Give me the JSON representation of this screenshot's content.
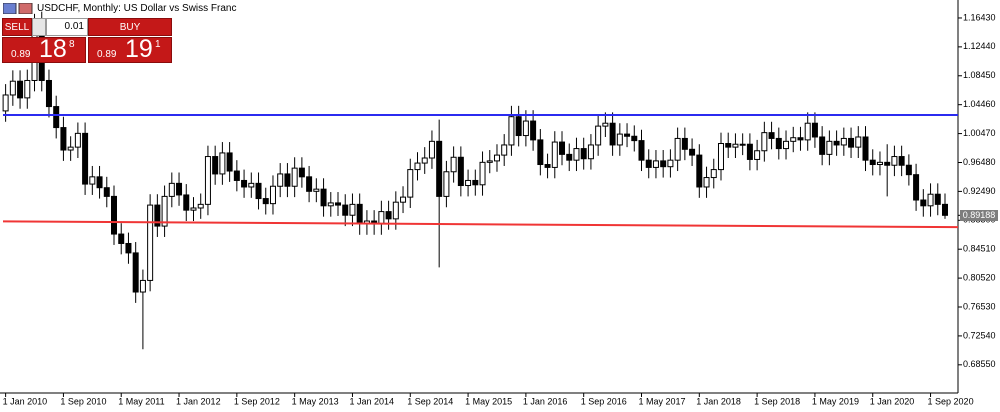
{
  "chart_data": {
    "type": "candlestick",
    "title": "USDCHF, Monthly:  US Dollar vs Swiss Franc",
    "categories": [
      "1 Jan 2010",
      null,
      null,
      null,
      null,
      null,
      null,
      null,
      "1 Sep 2010",
      null,
      null,
      null,
      null,
      null,
      null,
      null,
      "1 May 2011",
      null,
      null,
      null,
      null,
      null,
      null,
      null,
      "1 Jan 2012",
      null,
      null,
      null,
      null,
      null,
      null,
      null,
      "1 Sep 2012",
      null,
      null,
      null,
      null,
      null,
      null,
      null,
      "1 May 2013",
      null,
      null,
      null,
      null,
      null,
      null,
      null,
      "1 Jan 2014",
      null,
      null,
      null,
      null,
      null,
      null,
      null,
      "1 Sep 2014",
      null,
      null,
      null,
      null,
      null,
      null,
      null,
      "1 May 2015",
      null,
      null,
      null,
      null,
      null,
      null,
      null,
      "1 Jan 2016",
      null,
      null,
      null,
      null,
      null,
      null,
      null,
      "1 Sep 2016",
      null,
      null,
      null,
      null,
      null,
      null,
      null,
      "1 May 2017",
      null,
      null,
      null,
      null,
      null,
      null,
      null,
      "1 Jan 2018",
      null,
      null,
      null,
      null,
      null,
      null,
      null,
      "1 Sep 2018",
      null,
      null,
      null,
      null,
      null,
      null,
      null,
      "1 May 2019",
      null,
      null,
      null,
      null,
      null,
      null,
      null,
      "1 Jan 2020",
      null,
      null,
      null,
      null,
      null,
      null,
      null,
      "1 Sep 2020",
      null,
      null
    ],
    "open": [
      1.036,
      1.058,
      1.077,
      1.054,
      1.078,
      1.155,
      1.078,
      1.042,
      1.013,
      0.982,
      0.986,
      1.005,
      0.935,
      0.945,
      0.93,
      0.918,
      0.866,
      0.853,
      0.84,
      0.786,
      0.802,
      0.906,
      0.877,
      0.918,
      0.936,
      0.92,
      0.899,
      0.902,
      0.907,
      0.973,
      0.949,
      0.978,
      0.953,
      0.94,
      0.931,
      0.936,
      0.915,
      0.908,
      0.932,
      0.949,
      0.932,
      0.957,
      0.945,
      0.925,
      0.928,
      0.905,
      0.909,
      0.906,
      0.892,
      0.907,
      0.88,
      0.884,
      0.88,
      0.897,
      0.887,
      0.91,
      0.917,
      0.955,
      0.964,
      0.971,
      0.994,
      0.918,
      0.952,
      0.972,
      0.933,
      0.94,
      0.934,
      0.965,
      0.967,
      0.975,
      0.989,
      1.028,
      1.002,
      1.022,
      0.996,
      0.962,
      0.958,
      0.993,
      0.976,
      0.968,
      0.984,
      0.97,
      0.989,
      1.015,
      1.019,
      0.989,
      1.004,
      1.001,
      0.995,
      0.968,
      0.958,
      0.967,
      0.959,
      0.968,
      0.998,
      0.983,
      0.975,
      0.931,
      0.944,
      0.955,
      0.991,
      0.986,
      0.99,
      0.99,
      0.969,
      0.981,
      1.006,
      0.998,
      0.984,
      0.994,
      0.999,
      0.996,
      1.019,
      1.0,
      0.976,
      0.994,
      0.989,
      0.998,
      0.986,
      1.0,
      0.968,
      0.962,
      0.965,
      0.961,
      0.973,
      0.961,
      0.948,
      0.913,
      0.905,
      0.921,
      0.907
    ],
    "high": [
      1.073,
      1.092,
      1.092,
      1.093,
      1.17,
      1.173,
      1.093,
      1.057,
      1.028,
      1.001,
      1.02,
      1.02,
      0.96,
      0.96,
      0.945,
      0.933,
      0.881,
      0.868,
      0.855,
      0.817,
      0.921,
      0.921,
      0.933,
      0.951,
      0.951,
      0.935,
      0.917,
      0.922,
      0.988,
      0.988,
      0.993,
      0.993,
      0.968,
      0.955,
      0.951,
      0.951,
      0.93,
      0.947,
      0.964,
      0.964,
      0.972,
      0.972,
      0.96,
      0.943,
      0.943,
      0.924,
      0.924,
      0.921,
      0.922,
      0.922,
      0.899,
      0.899,
      0.912,
      0.912,
      0.925,
      0.932,
      0.97,
      0.979,
      0.986,
      1.009,
      1.024,
      0.967,
      0.987,
      0.987,
      0.955,
      0.955,
      0.98,
      0.982,
      0.99,
      1.004,
      1.043,
      1.043,
      1.037,
      1.037,
      1.011,
      0.977,
      1.008,
      1.008,
      0.991,
      0.999,
      0.999,
      1.004,
      1.03,
      1.034,
      1.034,
      1.019,
      1.019,
      1.016,
      1.01,
      0.983,
      0.982,
      0.982,
      0.983,
      1.013,
      1.013,
      0.998,
      0.99,
      0.959,
      0.97,
      1.006,
      1.006,
      1.005,
      1.005,
      1.005,
      0.996,
      1.021,
      1.021,
      1.013,
      1.009,
      1.014,
      1.014,
      1.034,
      1.034,
      1.015,
      1.009,
      1.009,
      1.013,
      1.013,
      1.015,
      1.015,
      0.983,
      0.98,
      0.99,
      0.988,
      0.988,
      0.976,
      0.963,
      0.928,
      0.936,
      0.936,
      0.922
    ],
    "low": [
      1.021,
      1.043,
      1.039,
      1.039,
      1.063,
      1.063,
      1.027,
      0.998,
      0.967,
      0.967,
      0.971,
      0.92,
      0.92,
      0.915,
      0.903,
      0.851,
      0.838,
      0.825,
      0.771,
      0.707,
      0.787,
      0.862,
      0.862,
      0.903,
      0.905,
      0.884,
      0.884,
      0.887,
      0.892,
      0.934,
      0.934,
      0.938,
      0.925,
      0.916,
      0.916,
      0.9,
      0.893,
      0.893,
      0.917,
      0.917,
      0.917,
      0.93,
      0.91,
      0.91,
      0.89,
      0.89,
      0.891,
      0.877,
      0.877,
      0.865,
      0.865,
      0.865,
      0.865,
      0.872,
      0.872,
      0.895,
      0.902,
      0.94,
      0.949,
      0.956,
      0.82,
      0.903,
      0.937,
      0.918,
      0.918,
      0.919,
      0.919,
      0.95,
      0.952,
      0.96,
      0.974,
      0.987,
      0.987,
      0.981,
      0.947,
      0.943,
      0.943,
      0.961,
      0.953,
      0.953,
      0.955,
      0.955,
      0.974,
      1.0,
      0.974,
      0.974,
      0.986,
      0.98,
      0.953,
      0.943,
      0.943,
      0.944,
      0.944,
      0.953,
      0.968,
      0.96,
      0.916,
      0.916,
      0.929,
      0.94,
      0.971,
      0.971,
      0.975,
      0.954,
      0.954,
      0.966,
      0.983,
      0.969,
      0.969,
      0.979,
      0.981,
      0.981,
      0.985,
      0.961,
      0.961,
      0.974,
      0.974,
      0.971,
      0.971,
      0.953,
      0.947,
      0.947,
      0.918,
      0.946,
      0.946,
      0.933,
      0.898,
      0.89,
      0.89,
      0.892,
      0.887
    ],
    "close": [
      1.058,
      1.077,
      1.054,
      1.078,
      1.155,
      1.078,
      1.042,
      1.013,
      0.982,
      0.986,
      1.005,
      0.935,
      0.945,
      0.93,
      0.918,
      0.866,
      0.853,
      0.84,
      0.786,
      0.802,
      0.906,
      0.877,
      0.918,
      0.936,
      0.92,
      0.899,
      0.902,
      0.907,
      0.973,
      0.949,
      0.978,
      0.953,
      0.94,
      0.931,
      0.936,
      0.915,
      0.908,
      0.932,
      0.949,
      0.932,
      0.957,
      0.945,
      0.925,
      0.928,
      0.905,
      0.909,
      0.906,
      0.892,
      0.907,
      0.88,
      0.884,
      0.88,
      0.897,
      0.887,
      0.91,
      0.917,
      0.955,
      0.964,
      0.971,
      0.994,
      0.918,
      0.952,
      0.972,
      0.933,
      0.94,
      0.934,
      0.965,
      0.967,
      0.975,
      0.989,
      1.028,
      1.002,
      1.022,
      0.996,
      0.962,
      0.958,
      0.993,
      0.976,
      0.968,
      0.984,
      0.97,
      0.989,
      1.015,
      1.019,
      0.989,
      1.004,
      1.001,
      0.995,
      0.968,
      0.958,
      0.967,
      0.959,
      0.968,
      0.998,
      0.983,
      0.975,
      0.931,
      0.944,
      0.955,
      0.991,
      0.986,
      0.99,
      0.99,
      0.969,
      0.981,
      1.006,
      0.998,
      0.984,
      0.994,
      0.999,
      0.996,
      1.019,
      1.0,
      0.976,
      0.994,
      0.989,
      0.998,
      0.986,
      1.0,
      0.968,
      0.962,
      0.965,
      0.961,
      0.973,
      0.961,
      0.948,
      0.913,
      0.905,
      0.921,
      0.907,
      0.89188
    ],
    "up_color": "#ffffff",
    "down_color": "#000000",
    "wick_color": "#000000",
    "ylim": [
      0.6466,
      1.1891
    ],
    "yticks": [
      {
        "value": 1.1643,
        "label": "1.16430"
      },
      {
        "value": 1.1244,
        "label": "1.12440"
      },
      {
        "value": 1.0845,
        "label": "1.08450"
      },
      {
        "value": 1.0446,
        "label": "1.04460"
      },
      {
        "value": 1.0047,
        "label": "1.00470"
      },
      {
        "value": 0.9648,
        "label": "0.96480"
      },
      {
        "value": 0.9249,
        "label": "0.92490"
      },
      {
        "value": 0.885,
        "label": "0.88500"
      },
      {
        "value": 0.8451,
        "label": "0.84510"
      },
      {
        "value": 0.8052,
        "label": "0.80520"
      },
      {
        "value": 0.7653,
        "label": "0.76530"
      },
      {
        "value": 0.7254,
        "label": "0.72540"
      },
      {
        "value": 0.6855,
        "label": "0.68550"
      }
    ],
    "grid": false,
    "current_price": 0.89188,
    "trendlines": [
      {
        "color": "#2b2bf0",
        "values": [
          1.0303,
          1.0303
        ]
      },
      {
        "color": "#f03535",
        "values": [
          0.8835,
          0.8755
        ]
      }
    ]
  },
  "trade_panel": {
    "sell_label": "SELL",
    "buy_label": "BUY",
    "lot": "0.01",
    "bid": {
      "prefix": "0.89",
      "big": "18",
      "small": "8"
    },
    "ask": {
      "prefix": "0.89",
      "big": "19",
      "small": "1"
    }
  }
}
